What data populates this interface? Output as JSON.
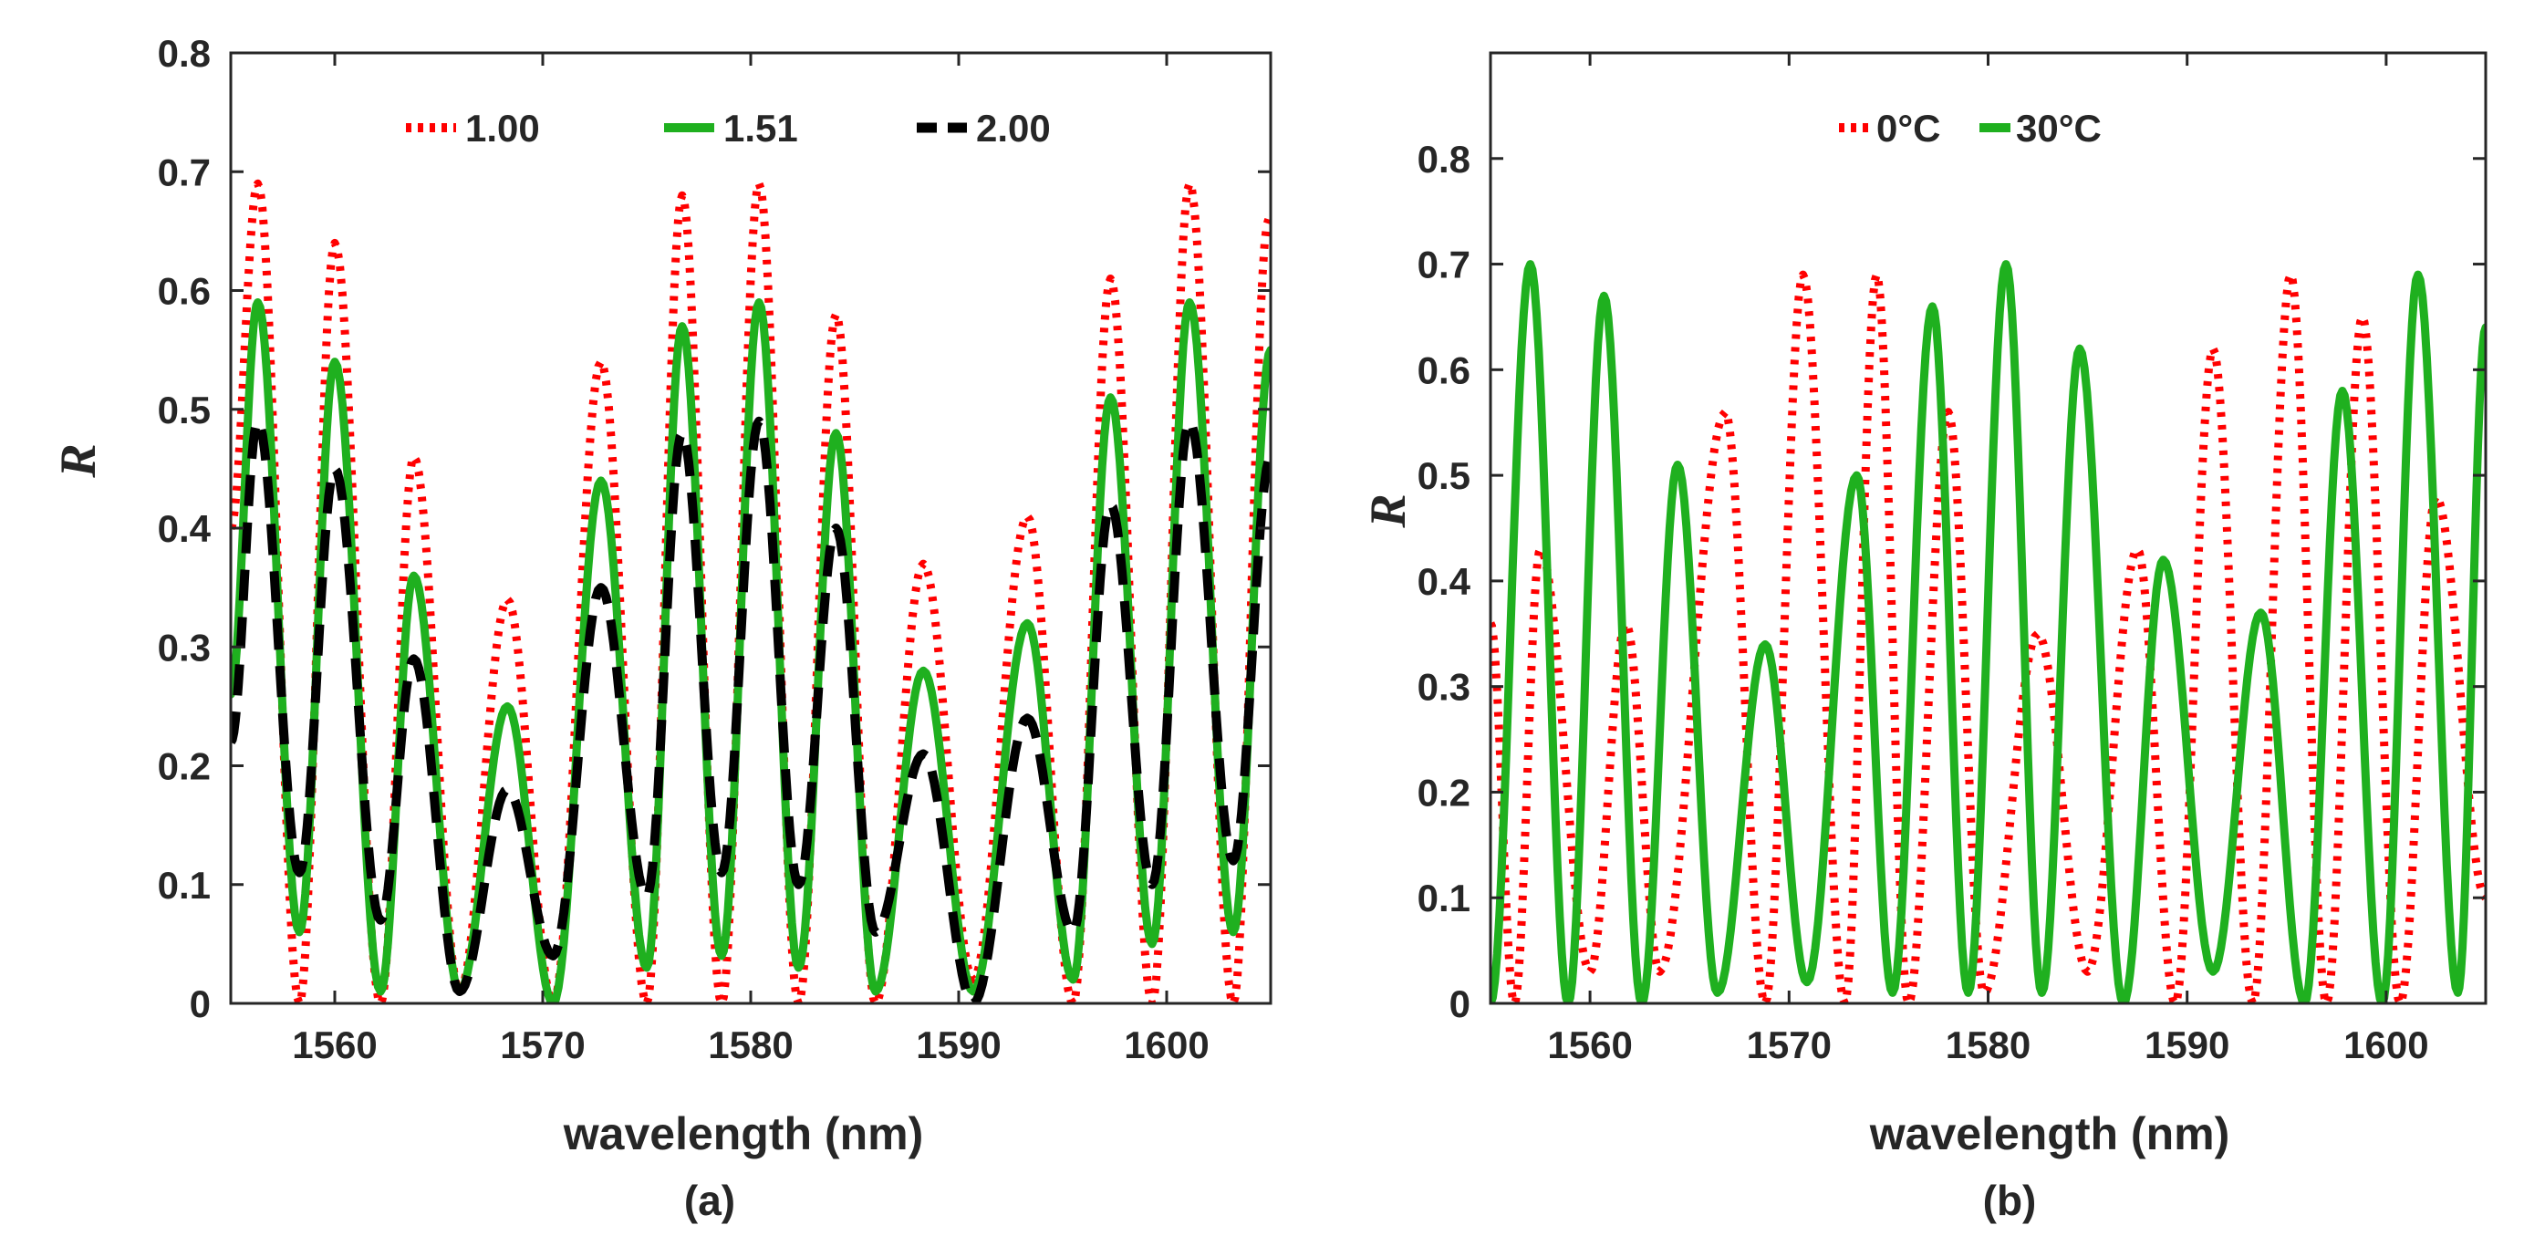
{
  "chart_data": [
    {
      "type": "line",
      "panel_label": "(a)",
      "xlabel": "wavelength (nm)",
      "ylabel": "R",
      "xlim": [
        1555,
        1605
      ],
      "ylim": [
        0,
        0.8
      ],
      "xticks": [
        1560,
        1570,
        1580,
        1590,
        1600
      ],
      "xtick_labels": [
        "1560",
        "1570",
        "1580",
        "1590",
        "1600"
      ],
      "yticks": [
        0,
        0.1,
        0.2,
        0.3,
        0.4,
        0.5,
        0.6,
        0.7,
        0.8
      ],
      "ytick_labels": [
        "0",
        "0.1",
        "0.2",
        "0.3",
        "0.4",
        "0.5",
        "0.6",
        "0.7",
        "0.8"
      ],
      "grid": false,
      "legend_position": "top",
      "series": [
        {
          "name": "1.00",
          "color": "#ff0000",
          "style": "dotted",
          "peaks": [
            [
              1556.3,
              0.69
            ],
            [
              1560.0,
              0.64
            ],
            [
              1563.8,
              0.46
            ],
            [
              1568.3,
              0.34
            ],
            [
              1572.8,
              0.54
            ],
            [
              1576.7,
              0.68
            ],
            [
              1580.4,
              0.69
            ],
            [
              1584.1,
              0.58
            ],
            [
              1588.3,
              0.37
            ],
            [
              1593.3,
              0.41
            ],
            [
              1597.3,
              0.61
            ],
            [
              1601.1,
              0.69
            ],
            [
              1604.9,
              0.66
            ]
          ],
          "troughs": [
            [
              1555.0,
              0.4
            ],
            [
              1558.3,
              0.0
            ],
            [
              1562.2,
              0.0
            ],
            [
              1566.0,
              0.01
            ],
            [
              1570.5,
              0.0
            ],
            [
              1575.0,
              0.0
            ],
            [
              1578.6,
              0.0
            ],
            [
              1582.3,
              0.0
            ],
            [
              1586.0,
              0.0
            ],
            [
              1590.7,
              0.02
            ],
            [
              1595.5,
              0.0
            ],
            [
              1599.3,
              0.0
            ],
            [
              1603.2,
              0.0
            ]
          ]
        },
        {
          "name": "1.51",
          "color": "#1fb01f",
          "style": "solid",
          "peaks": [
            [
              1556.3,
              0.59
            ],
            [
              1560.0,
              0.54
            ],
            [
              1563.8,
              0.36
            ],
            [
              1568.3,
              0.25
            ],
            [
              1572.8,
              0.44
            ],
            [
              1576.7,
              0.57
            ],
            [
              1580.4,
              0.59
            ],
            [
              1584.1,
              0.48
            ],
            [
              1588.3,
              0.28
            ],
            [
              1593.3,
              0.32
            ],
            [
              1597.3,
              0.51
            ],
            [
              1601.1,
              0.59
            ],
            [
              1605.0,
              0.55
            ]
          ],
          "troughs": [
            [
              1555.0,
              0.26
            ],
            [
              1558.3,
              0.06
            ],
            [
              1562.2,
              0.01
            ],
            [
              1566.0,
              0.01
            ],
            [
              1570.5,
              0.0
            ],
            [
              1575.0,
              0.03
            ],
            [
              1578.6,
              0.04
            ],
            [
              1582.3,
              0.03
            ],
            [
              1586.0,
              0.01
            ],
            [
              1590.7,
              0.01
            ],
            [
              1595.5,
              0.02
            ],
            [
              1599.3,
              0.05
            ],
            [
              1603.2,
              0.06
            ]
          ]
        },
        {
          "name": "2.00",
          "color": "#000000",
          "style": "dashed",
          "peaks": [
            [
              1556.3,
              0.49
            ],
            [
              1560.0,
              0.45
            ],
            [
              1563.8,
              0.29
            ],
            [
              1568.3,
              0.18
            ],
            [
              1572.8,
              0.35
            ],
            [
              1576.7,
              0.48
            ],
            [
              1580.4,
              0.49
            ],
            [
              1584.1,
              0.4
            ],
            [
              1588.3,
              0.21
            ],
            [
              1593.3,
              0.24
            ],
            [
              1597.3,
              0.42
            ],
            [
              1601.1,
              0.49
            ],
            [
              1605.0,
              0.46
            ]
          ],
          "troughs": [
            [
              1555.0,
              0.22
            ],
            [
              1558.3,
              0.11
            ],
            [
              1562.2,
              0.07
            ],
            [
              1566.0,
              0.01
            ],
            [
              1570.5,
              0.04
            ],
            [
              1575.0,
              0.09
            ],
            [
              1578.6,
              0.11
            ],
            [
              1582.3,
              0.1
            ],
            [
              1586.0,
              0.06
            ],
            [
              1590.7,
              0.0
            ],
            [
              1595.5,
              0.06
            ],
            [
              1599.3,
              0.1
            ],
            [
              1603.2,
              0.12
            ]
          ]
        }
      ]
    },
    {
      "type": "line",
      "panel_label": "(b)",
      "xlabel": "wavelength (nm)",
      "ylabel": "R",
      "xlim": [
        1555,
        1605
      ],
      "ylim": [
        0,
        0.9
      ],
      "xticks": [
        1560,
        1570,
        1580,
        1590,
        1600
      ],
      "xtick_labels": [
        "1560",
        "1570",
        "1580",
        "1590",
        "1600"
      ],
      "yticks": [
        0,
        0.1,
        0.2,
        0.3,
        0.4,
        0.5,
        0.6,
        0.7,
        0.8
      ],
      "ytick_labels": [
        "0",
        "0.1",
        "0.2",
        "0.3",
        "0.4",
        "0.5",
        "0.6",
        "0.7",
        "0.8"
      ],
      "grid": false,
      "legend_position": "top",
      "series": [
        {
          "name": "0°C",
          "color": "#ff0000",
          "style": "dotted",
          "peaks": [
            [
              1557.5,
              0.43
            ],
            [
              1561.8,
              0.36
            ],
            [
              1566.8,
              0.56
            ],
            [
              1570.7,
              0.69
            ],
            [
              1574.4,
              0.69
            ],
            [
              1578.0,
              0.56
            ],
            [
              1582.5,
              0.35
            ],
            [
              1587.5,
              0.43
            ],
            [
              1591.3,
              0.62
            ],
            [
              1595.2,
              0.69
            ],
            [
              1598.8,
              0.65
            ],
            [
              1602.5,
              0.48
            ]
          ],
          "troughs": [
            [
              1555.0,
              0.36
            ],
            [
              1556.2,
              0.0
            ],
            [
              1560.0,
              0.03
            ],
            [
              1563.5,
              0.03
            ],
            [
              1568.8,
              0.0
            ],
            [
              1572.8,
              0.0
            ],
            [
              1576.0,
              0.0
            ],
            [
              1579.8,
              0.01
            ],
            [
              1585.0,
              0.03
            ],
            [
              1589.4,
              0.0
            ],
            [
              1593.3,
              0.0
            ],
            [
              1597.0,
              0.0
            ],
            [
              1600.7,
              0.0
            ],
            [
              1605.0,
              0.1
            ]
          ]
        },
        {
          "name": "30°C",
          "color": "#1fb01f",
          "style": "solid",
          "peaks": [
            [
              1557.0,
              0.7
            ],
            [
              1560.7,
              0.67
            ],
            [
              1564.4,
              0.51
            ],
            [
              1568.8,
              0.34
            ],
            [
              1573.4,
              0.5
            ],
            [
              1577.2,
              0.66
            ],
            [
              1580.9,
              0.7
            ],
            [
              1584.6,
              0.62
            ],
            [
              1588.8,
              0.42
            ],
            [
              1593.7,
              0.37
            ],
            [
              1597.8,
              0.58
            ],
            [
              1601.6,
              0.69
            ],
            [
              1605.0,
              0.64
            ]
          ],
          "troughs": [
            [
              1555.0,
              0.0
            ],
            [
              1558.9,
              0.0
            ],
            [
              1562.6,
              0.0
            ],
            [
              1566.4,
              0.01
            ],
            [
              1570.9,
              0.02
            ],
            [
              1575.2,
              0.01
            ],
            [
              1579.0,
              0.01
            ],
            [
              1582.7,
              0.01
            ],
            [
              1586.8,
              0.0
            ],
            [
              1591.3,
              0.03
            ],
            [
              1595.9,
              0.0
            ],
            [
              1599.8,
              0.0
            ],
            [
              1603.6,
              0.01
            ]
          ]
        }
      ]
    }
  ]
}
